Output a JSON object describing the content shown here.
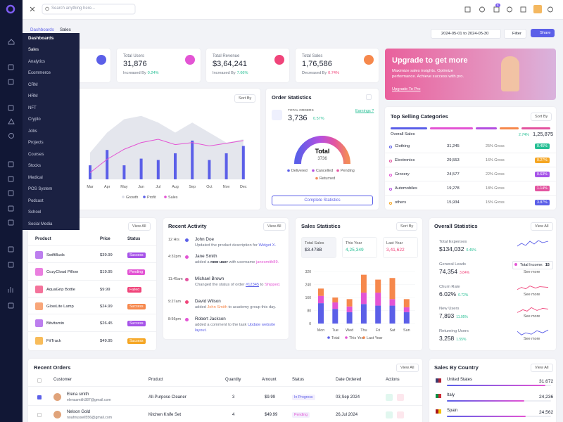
{
  "topbar": {
    "search_placeholder": "Search anything here...",
    "cart_badge": "5"
  },
  "menu": {
    "title": "Dashboards",
    "items": [
      "Sales",
      "Analytics",
      "Ecommerce",
      "CRM",
      "HRM",
      "NFT",
      "Crypto",
      "Jobs",
      "Projects",
      "Courses",
      "Stocks",
      "Medical",
      "POS System",
      "Podcast",
      "School",
      "Social Media"
    ]
  },
  "breadcrumb": {
    "parent": "Dashboards",
    "current": "Sales"
  },
  "toolbar": {
    "date_range": "2024-05-01 to 2024-05-30",
    "filter": "Filter",
    "share": "Share"
  },
  "stats": [
    {
      "label": "Total Users",
      "value": "31,876",
      "note": "Increased By",
      "change": "0.24%",
      "trend": "up",
      "color": "#e354d4"
    },
    {
      "label": "Total Revenue",
      "value": "$3,64,241",
      "note": "Increased By",
      "change": "7.66%",
      "trend": "up",
      "color": "#f0447a"
    },
    {
      "label": "Total Sales",
      "value": "1,76,586",
      "note": "Decreased By",
      "change": "0.74%",
      "trend": "down",
      "color": "#f6884c"
    }
  ],
  "upgrade": {
    "title": "Upgrade to get more",
    "text": "Maximize sales insights. Optimize performance. Achieve success with pro.",
    "link": "Upgrade To Pro"
  },
  "overview_chart": {
    "sort": "Sort By",
    "months": [
      "Mar",
      "Apr",
      "May",
      "Jun",
      "Jul",
      "Aug",
      "Sep",
      "Oct",
      "Nov",
      "Dec"
    ],
    "ylim": [
      0,
      100
    ],
    "series": [
      {
        "name": "Growth",
        "color": "#d9dbe6",
        "values": [
          40,
          70,
          90,
          95,
          85,
          70,
          85,
          70,
          55,
          60
        ]
      },
      {
        "name": "Profit",
        "color": "#5b5fe8",
        "values": [
          21,
          44,
          21,
          31,
          29,
          39,
          58,
          29,
          39,
          50
        ]
      },
      {
        "name": "Sales",
        "color": "#e354d4",
        "values": [
          10,
          30,
          45,
          55,
          60,
          52,
          55,
          50,
          54,
          58
        ]
      }
    ]
  },
  "order_statistics": {
    "title": "Order Statistics",
    "total_label": "TOTAL ORDERS",
    "total": "3,736",
    "change": "0.57%",
    "earnings": "Earnings ?",
    "gauge_title": "Total",
    "gauge_value": "3736",
    "legend": [
      {
        "name": "Delivered",
        "color": "#5b5fe8"
      },
      {
        "name": "Cancelled",
        "color": "#b44fe0"
      },
      {
        "name": "Pending",
        "color": "#e354a0"
      },
      {
        "name": "Returned",
        "color": "#f28a5a"
      }
    ],
    "button": "Complete Statistics"
  },
  "top_selling": {
    "title": "Top Selling Categories",
    "sort": "Sort By",
    "overall_label": "Overall Sales",
    "overall_change": "2.74%",
    "overall_value": "1,25,875",
    "rows": [
      {
        "name": "Clothing",
        "value": "31,245",
        "gross": "25% Gross",
        "change": "0.45%",
        "dot": "#5b5fe8",
        "badge": "#26bf94"
      },
      {
        "name": "Electronics",
        "value": "29,553",
        "gross": "16% Gross",
        "change": "0.27%",
        "dot": "#e354a0",
        "badge": "#f5a623"
      },
      {
        "name": "Grocery",
        "value": "24,577",
        "gross": "22% Gross",
        "change": "0.63%",
        "dot": "#e354d4",
        "badge": "#a653e8"
      },
      {
        "name": "Automobiles",
        "value": "19,278",
        "gross": "18% Gross",
        "change": "1.14%",
        "dot": "#b44fe0",
        "badge": "#e354a0"
      },
      {
        "name": "others",
        "value": "15,934",
        "gross": "15% Gross",
        "change": "3.87%",
        "dot": "#f5a623",
        "badge": "#5b5fe8"
      }
    ]
  },
  "products": {
    "view_all": "View All",
    "columns": [
      "Product",
      "Price",
      "Status"
    ],
    "rows": [
      {
        "name": "SwiftBuds",
        "price": "$39.99",
        "status": "Success",
        "color": "#a653e8"
      },
      {
        "name": "CozyCloud Pillow",
        "price": "$19.95",
        "status": "Pending",
        "color": "#e354d4"
      },
      {
        "name": "AquaGrip Bottle",
        "price": "$9.99",
        "status": "Failed",
        "color": "#f0447a"
      },
      {
        "name": "GlowLite Lamp",
        "price": "$24.99",
        "status": "Success",
        "color": "#f6884c"
      },
      {
        "name": "Bitvitamin",
        "price": "$26.45",
        "status": "Success",
        "color": "#a653e8"
      },
      {
        "name": "FitTrack",
        "price": "$49.95",
        "status": "Success",
        "color": "#f5a623"
      }
    ]
  },
  "activity": {
    "title": "Recent Activity",
    "view_all": "View All",
    "items": [
      {
        "time": "12 Hrs",
        "name": "John Doe",
        "dot": "#5b5fe8",
        "text": [
          {
            "t": "Updated the product description for "
          },
          {
            "t": "Widget X.",
            "style": "blue"
          }
        ]
      },
      {
        "time": "4:32pm",
        "name": "Jane Smith",
        "dot": "#e354d4",
        "text": [
          {
            "t": "added a "
          },
          {
            "t": "new user",
            "style": "bold"
          },
          {
            "t": " with username "
          },
          {
            "t": "janesmith89.",
            "style": "pink"
          }
        ]
      },
      {
        "time": "11:45am",
        "name": "Michael Brown",
        "dot": "#e354a0",
        "text": [
          {
            "t": "Changed the status of order "
          },
          {
            "t": "#12345",
            "style": "underline"
          },
          {
            "t": " to "
          },
          {
            "t": "Shipped.",
            "style": "pink"
          }
        ]
      },
      {
        "time": "9:27am",
        "name": "David Wilson",
        "dot": "#f0447a",
        "text": [
          {
            "t": "added "
          },
          {
            "t": "John Smith",
            "style": "orange"
          },
          {
            "t": " to academy group this day."
          }
        ]
      },
      {
        "time": "8:56pm",
        "name": "Robert Jackson",
        "dot": "#e354d4",
        "text": [
          {
            "t": "added a comment to the task "
          },
          {
            "t": "Update website layout.",
            "style": "blue"
          }
        ]
      }
    ]
  },
  "sales_statistics": {
    "title": "Sales Statistics",
    "sort": "Sort By",
    "boxes": [
      {
        "label": "Total Sales",
        "value": "$3.478B",
        "color": "#1f2433"
      },
      {
        "label": "This Year",
        "value": "4,25,349",
        "color": "#26bf94"
      },
      {
        "label": "Last Year",
        "value": "3,41,622",
        "color": "#f0447a"
      }
    ],
    "days": [
      "Mon",
      "Tue",
      "Wed",
      "Thu",
      "Fri",
      "Sat",
      "Sun"
    ],
    "ylim": [
      0,
      320
    ],
    "yticks": [
      0,
      80,
      160,
      240,
      320
    ],
    "series": [
      {
        "name": "Total",
        "color": "#5b5fe8",
        "values": [
          125,
          90,
          70,
          120,
          110,
          110,
          70
        ]
      },
      {
        "name": "This Year",
        "color": "#e354d4",
        "values": [
          45,
          40,
          35,
          70,
          80,
          40,
          30
        ]
      },
      {
        "name": "Last Year",
        "color": "#f6884c",
        "values": [
          45,
          30,
          45,
          110,
          80,
          130,
          50
        ]
      }
    ]
  },
  "overall_statistics": {
    "title": "Overall Statistics",
    "view_all": "View All",
    "see_more": "See more",
    "tooltip": "Total Income:",
    "tooltip_value": "15",
    "rows": [
      {
        "label": "Total Expenses",
        "value": "$134,032",
        "change": "0.45%",
        "trend": "up",
        "color": "#5b5fe8"
      },
      {
        "label": "General Leads",
        "value": "74,354",
        "change": "3.84%",
        "trend": "down",
        "color": "#e354d4"
      },
      {
        "label": "Churn Rate",
        "value": "6.02%",
        "change": "0.72%",
        "trend": "up",
        "color": "#f0447a"
      },
      {
        "label": "New Users",
        "value": "7,893",
        "change": "11.05%",
        "trend": "up",
        "color": "#f0447a"
      },
      {
        "label": "Returning Users",
        "value": "3,258",
        "change": "1.55%",
        "trend": "up",
        "color": "#5b5fe8"
      }
    ]
  },
  "recent_orders": {
    "title": "Recent Orders",
    "view_all": "View All",
    "columns": [
      "Customer",
      "Product",
      "Quantity",
      "Amount",
      "Status",
      "Date Ordered",
      "Actions"
    ],
    "rows": [
      {
        "checked": true,
        "name": "Elena smith",
        "email": "elenasmith387@gmail.com",
        "product": "All-Purpose Cleaner",
        "quantity": 3,
        "amount": "$9.99",
        "status": "In Progress",
        "status_color": "#5b5fe8",
        "date": "03,Sep 2024"
      },
      {
        "checked": false,
        "name": "Nelson Gold",
        "email": "noahrussell556@gmail.com",
        "product": "Kitchen Knife Set",
        "quantity": 4,
        "amount": "$49.99",
        "status": "Pending",
        "status_color": "#e354d4",
        "date": "26,Jul 2024"
      }
    ]
  },
  "sales_by_country": {
    "title": "Sales By Country",
    "view_all": "View All",
    "rows": [
      {
        "name": "United States",
        "value": "31,672"
      },
      {
        "name": "Italy",
        "value": "24,236"
      },
      {
        "name": "Spain",
        "value": "24,562"
      }
    ]
  }
}
